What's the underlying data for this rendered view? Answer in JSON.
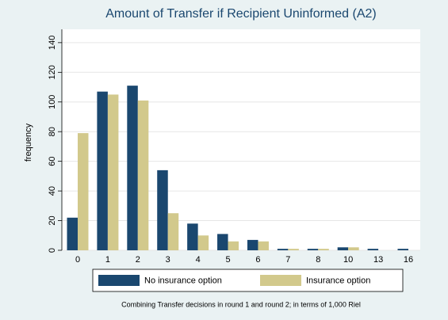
{
  "chart_data": {
    "type": "bar",
    "title": "Amount of Transfer if Recipient Uninformed (A2)",
    "ylabel": "frequency",
    "note": "Combining Transfer decisions in round 1 and round 2; in terms of 1,000 Riel",
    "categories": [
      "0",
      "1",
      "2",
      "3",
      "4",
      "5",
      "6",
      "7",
      "8",
      "10",
      "13",
      "16"
    ],
    "series": [
      {
        "name": "No insurance option",
        "color": "#1a476f",
        "values": [
          22,
          107,
          111,
          54,
          18,
          11,
          7,
          1,
          1,
          2,
          1,
          1
        ]
      },
      {
        "name": "Insurance option",
        "color": "#d2c98c",
        "values": [
          79,
          105,
          101,
          25,
          10,
          6,
          6,
          1,
          1,
          2,
          0,
          0
        ]
      }
    ],
    "ylim": [
      0,
      149
    ],
    "yticks": [
      0,
      20,
      40,
      60,
      80,
      100,
      120,
      140
    ],
    "grid": true,
    "legend": "bottom"
  }
}
